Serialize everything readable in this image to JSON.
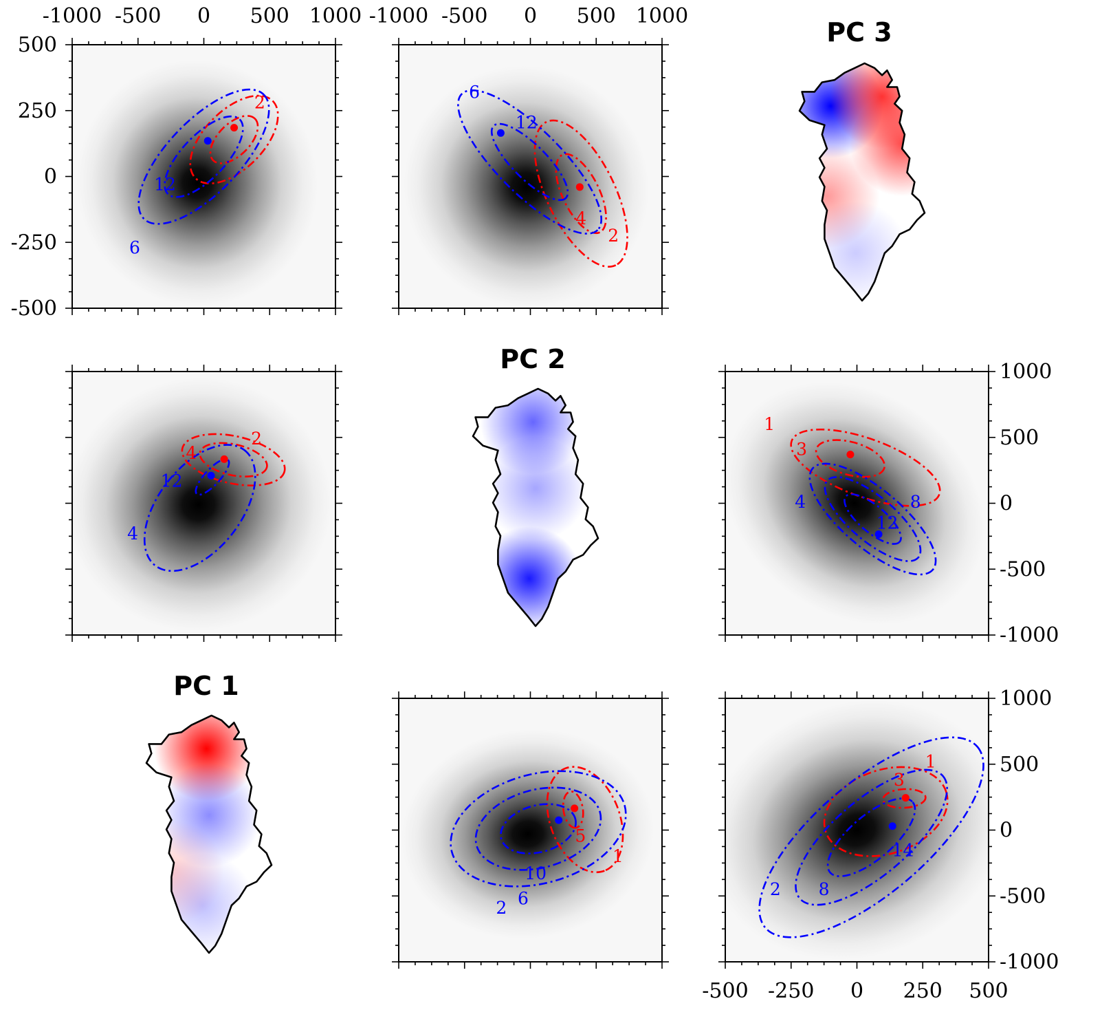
{
  "colors": {
    "sample_a": "#ff0000",
    "sample_b": "#0000ff",
    "density_peak": "#000000",
    "density_low": "#f7f7f7",
    "map_positive": "#ff0000",
    "map_negative": "#0000ff",
    "outline": "#000000"
  },
  "icons": {
    "map_marker": "greenland-outline-icon"
  },
  "maps": [
    {
      "id": "pc1",
      "title": "PC 1",
      "pattern": [
        {
          "sign": "positive",
          "region": "north",
          "strength": 1.0
        },
        {
          "sign": "negative",
          "region": "central",
          "strength": 0.45
        },
        {
          "sign": "negative",
          "region": "south",
          "strength": 0.25
        },
        {
          "sign": "positive",
          "region": "southwest-spot",
          "strength": 0.2
        }
      ]
    },
    {
      "id": "pc2",
      "title": "PC 2",
      "pattern": [
        {
          "sign": "negative",
          "region": "north",
          "strength": 0.6
        },
        {
          "sign": "negative",
          "region": "central",
          "strength": 0.35
        },
        {
          "sign": "negative",
          "region": "south",
          "strength": 0.9
        }
      ]
    },
    {
      "id": "pc3",
      "title": "PC 3",
      "pattern": [
        {
          "sign": "negative",
          "region": "northwest",
          "strength": 1.0
        },
        {
          "sign": "positive",
          "region": "northeast",
          "strength": 0.8
        },
        {
          "sign": "positive",
          "region": "east-coast",
          "strength": 0.7
        },
        {
          "sign": "positive",
          "region": "southwest",
          "strength": 0.4
        },
        {
          "sign": "negative",
          "region": "south",
          "strength": 0.2
        }
      ]
    }
  ],
  "chart_data": [
    {
      "type": "contour",
      "id": "row1-col1",
      "xlim": [
        -1000,
        1000
      ],
      "ylim": [
        -500,
        500
      ],
      "x_ticks": [
        -1000,
        -500,
        0,
        500,
        1000
      ],
      "y_ticks": [
        500,
        250,
        0,
        -250,
        -500
      ],
      "x_tick_labels": [
        "-1000",
        "-500",
        "0",
        "500",
        "1000"
      ],
      "y_tick_labels": [
        "500",
        "250",
        "0",
        "-250",
        "-500"
      ],
      "background": {
        "center": [
          -50,
          -25
        ],
        "sx": 380,
        "sy": 195,
        "rho": 0.3
      },
      "contours": [
        {
          "color": "red",
          "center": [
            230,
            140
          ],
          "sx": 180,
          "sy": 90,
          "rho": 0.55,
          "levels": [
            {
              "k": 1.85,
              "label": "2"
            },
            {
              "k": 1.0,
              "label": ""
            }
          ]
        },
        {
          "color": "blue",
          "center": [
            0,
            75
          ],
          "sx": 330,
          "sy": 170,
          "rho": 0.7,
          "levels": [
            {
              "k": 1.5,
              "label": "6"
            },
            {
              "k": 0.9,
              "label": "12"
            }
          ]
        }
      ],
      "peaks": [
        {
          "color": "red",
          "x": 230,
          "y": 185
        },
        {
          "color": "blue",
          "x": 30,
          "y": 135
        }
      ],
      "labels": [
        {
          "color": "red",
          "x": 425,
          "y": 275,
          "text": "2"
        },
        {
          "color": "blue",
          "x": -295,
          "y": -35,
          "text": "12"
        },
        {
          "color": "blue",
          "x": -525,
          "y": -275,
          "text": "6"
        }
      ]
    },
    {
      "type": "contour",
      "id": "row1-col2",
      "xlim": [
        -1000,
        1000
      ],
      "ylim": [
        -500,
        500
      ],
      "x_ticks": [
        -1000,
        -500,
        0,
        500,
        1000
      ],
      "x_tick_labels": [
        "-1000",
        "-500",
        "0",
        "500",
        "1000"
      ],
      "background": {
        "center": [
          -30,
          -40
        ],
        "sx": 390,
        "sy": 190,
        "rho": -0.5
      },
      "contours": [
        {
          "color": "red",
          "center": [
            385,
            -65
          ],
          "sx": 190,
          "sy": 150,
          "rho": -0.6,
          "levels": [
            {
              "k": 1.85,
              "label": "2"
            },
            {
              "k": 1.0,
              "label": "4"
            }
          ]
        },
        {
          "color": "blue",
          "center": [
            -5,
            55
          ],
          "sx": 340,
          "sy": 170,
          "rho": -0.8,
          "levels": [
            {
              "k": 1.6,
              "label": "6"
            },
            {
              "k": 0.85,
              "label": "12"
            }
          ]
        }
      ],
      "peaks": [
        {
          "color": "red",
          "x": 375,
          "y": -40
        },
        {
          "color": "blue",
          "x": -225,
          "y": 165
        }
      ],
      "labels": [
        {
          "color": "red",
          "x": 630,
          "y": -230,
          "text": "2"
        },
        {
          "color": "red",
          "x": 385,
          "y": -165,
          "text": "4"
        },
        {
          "color": "blue",
          "x": -425,
          "y": 315,
          "text": "6"
        },
        {
          "color": "blue",
          "x": -30,
          "y": 200,
          "text": "12"
        }
      ]
    },
    {
      "type": "contour",
      "id": "row2-col1",
      "xlim": [
        -1000,
        1000
      ],
      "ylim": [
        -1000,
        1000
      ],
      "background": {
        "center": [
          -40,
          -10
        ],
        "sx": 420,
        "sy": 400,
        "rho": 0.15
      },
      "contours": [
        {
          "color": "red",
          "center": [
            225,
            330
          ],
          "sx": 300,
          "sy": 150,
          "rho": -0.35,
          "levels": [
            {
              "k": 1.3,
              "label": "2"
            },
            {
              "k": 0.85,
              "label": "4"
            }
          ]
        },
        {
          "color": "blue",
          "center": [
            -30,
            -35
          ],
          "sx": 290,
          "sy": 330,
          "rho": 0.5,
          "levels": [
            {
              "k": 1.45,
              "label": "4"
            }
          ]
        },
        {
          "color": "blue",
          "center": [
            65,
            200
          ],
          "sx": 140,
          "sy": 150,
          "rho": 0.8,
          "levels": [
            {
              "k": 0.9,
              "label": "12"
            }
          ]
        }
      ],
      "peaks": [
        {
          "color": "red",
          "x": 155,
          "y": 335
        },
        {
          "color": "blue",
          "x": 55,
          "y": 210
        }
      ],
      "labels": [
        {
          "color": "red",
          "x": 400,
          "y": 480,
          "text": "2"
        },
        {
          "color": "red",
          "x": -95,
          "y": 370,
          "text": "4"
        },
        {
          "color": "blue",
          "x": -245,
          "y": 160,
          "text": "12"
        },
        {
          "color": "blue",
          "x": -540,
          "y": -240,
          "text": "4"
        }
      ]
    },
    {
      "type": "contour",
      "id": "row2-col3",
      "xlim": [
        -1000,
        1000
      ],
      "ylim": [
        -1000,
        1000
      ],
      "y_ticks": [
        1000,
        500,
        0,
        -500,
        -1000
      ],
      "y_tick_labels": [
        "1000",
        "500",
        "0",
        "-500",
        "-1000"
      ],
      "background": {
        "center": [
          -20,
          0
        ],
        "sx": 440,
        "sy": 350,
        "rho": -0.6
      },
      "contours": [
        {
          "color": "red",
          "center": [
            -50,
            340
          ],
          "sx": 260,
          "sy": 140,
          "rho": -0.4,
          "levels": [
            {
              "k": 1.0,
              "label": "3"
            }
          ]
        },
        {
          "color": "red",
          "center": [
            65,
            270
          ],
          "sx": 390,
          "sy": 200,
          "rho": -0.6,
          "levels": [
            {
              "k": 1.45,
              "label": "1"
            }
          ]
        },
        {
          "color": "blue",
          "center": [
            120,
            -120
          ],
          "sx": 330,
          "sy": 290,
          "rho": -0.75,
          "levels": [
            {
              "k": 1.45,
              "label": "4"
            },
            {
              "k": 1.1,
              "label": "8"
            },
            {
              "k": 0.65,
              "label": "12"
            }
          ]
        }
      ],
      "peaks": [
        {
          "color": "red",
          "x": -50,
          "y": 370
        },
        {
          "color": "blue",
          "x": 165,
          "y": -235
        }
      ],
      "labels": [
        {
          "color": "red",
          "x": -665,
          "y": 590,
          "text": "1"
        },
        {
          "color": "red",
          "x": -420,
          "y": 400,
          "text": "3"
        },
        {
          "color": "blue",
          "x": -430,
          "y": 0,
          "text": "4"
        },
        {
          "color": "blue",
          "x": 445,
          "y": 0,
          "text": "8"
        },
        {
          "color": "blue",
          "x": 230,
          "y": -160,
          "text": "12"
        }
      ]
    },
    {
      "type": "contour",
      "id": "row3-col2",
      "xlim": [
        -1000,
        1000
      ],
      "ylim": [
        -1000,
        1000
      ],
      "background": {
        "center": [
          -20,
          -30
        ],
        "sx": 400,
        "sy": 330,
        "rho": 0.1
      },
      "contours": [
        {
          "color": "red",
          "center": [
            415,
            80
          ],
          "sx": 230,
          "sy": 320,
          "rho": -0.3,
          "levels": [
            {
              "k": 1.25,
              "label": "1"
            }
          ]
        },
        {
          "color": "red",
          "center": [
            325,
            155
          ],
          "sx": 80,
          "sy": 145,
          "rho": -0.2,
          "levels": [
            {
              "k": 0.95,
              "label": "5"
            }
          ]
        },
        {
          "color": "blue",
          "center": [
            60,
            10
          ],
          "sx": 380,
          "sy": 250,
          "rho": 0.25,
          "levels": [
            {
              "k": 1.75,
              "label": "2"
            },
            {
              "k": 1.25,
              "label": "6"
            },
            {
              "k": 0.75,
              "label": "10"
            }
          ]
        }
      ],
      "peaks": [
        {
          "color": "red",
          "x": 335,
          "y": 165
        },
        {
          "color": "blue",
          "x": 215,
          "y": 75
        }
      ],
      "labels": [
        {
          "color": "red",
          "x": 665,
          "y": -210,
          "text": "1"
        },
        {
          "color": "red",
          "x": 380,
          "y": -55,
          "text": "5"
        },
        {
          "color": "blue",
          "x": -220,
          "y": -600,
          "text": "2"
        },
        {
          "color": "blue",
          "x": -55,
          "y": -530,
          "text": "6"
        },
        {
          "color": "blue",
          "x": 40,
          "y": -340,
          "text": "10"
        }
      ]
    },
    {
      "type": "contour",
      "id": "row3-col3",
      "xlim": [
        -500,
        500
      ],
      "ylim": [
        -1000,
        1000
      ],
      "x_ticks": [
        -500,
        -250,
        0,
        250,
        500
      ],
      "x_tick_labels": [
        "-500",
        "-250",
        "0",
        "250",
        "500"
      ],
      "y_ticks": [
        1000,
        500,
        0,
        -500,
        -1000
      ],
      "y_tick_labels": [
        "1000",
        "500",
        "0",
        "-500",
        "-1000"
      ],
      "background": {
        "center": [
          0,
          0
        ],
        "sx": 240,
        "sy": 400,
        "rho": 0.3
      },
      "contours": [
        {
          "color": "red",
          "center": [
            110,
            140
          ],
          "sx": 180,
          "sy": 260,
          "rho": 0.25,
          "levels": [
            {
              "k": 1.3,
              "label": "1"
            }
          ]
        },
        {
          "color": "red",
          "center": [
            180,
            240
          ],
          "sx": 85,
          "sy": 75,
          "rho": 0.1,
          "levels": [
            {
              "k": 0.95,
              "label": "3"
            }
          ]
        },
        {
          "color": "blue",
          "center": [
            55,
            -55
          ],
          "sx": 230,
          "sy": 410,
          "rho": 0.72,
          "levels": [
            {
              "k": 1.85,
              "label": "2"
            },
            {
              "k": 1.25,
              "label": "8"
            },
            {
              "k": 0.72,
              "label": "14"
            }
          ]
        }
      ],
      "peaks": [
        {
          "color": "red",
          "x": 185,
          "y": 245
        },
        {
          "color": "blue",
          "x": 135,
          "y": 30
        }
      ],
      "labels": [
        {
          "color": "red",
          "x": 280,
          "y": 510,
          "text": "1"
        },
        {
          "color": "red",
          "x": 160,
          "y": 370,
          "text": "3"
        },
        {
          "color": "blue",
          "x": -310,
          "y": -460,
          "text": "2"
        },
        {
          "color": "blue",
          "x": -125,
          "y": -460,
          "text": "8"
        },
        {
          "color": "blue",
          "x": 175,
          "y": -165,
          "text": "14"
        }
      ]
    }
  ]
}
